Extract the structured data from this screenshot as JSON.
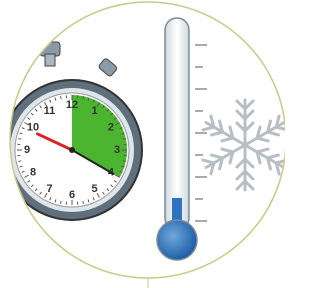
{
  "dial_numbers": [
    "12",
    "1",
    "2",
    "3",
    "4",
    "5",
    "6",
    "7",
    "8",
    "9",
    "10",
    "11"
  ]
}
